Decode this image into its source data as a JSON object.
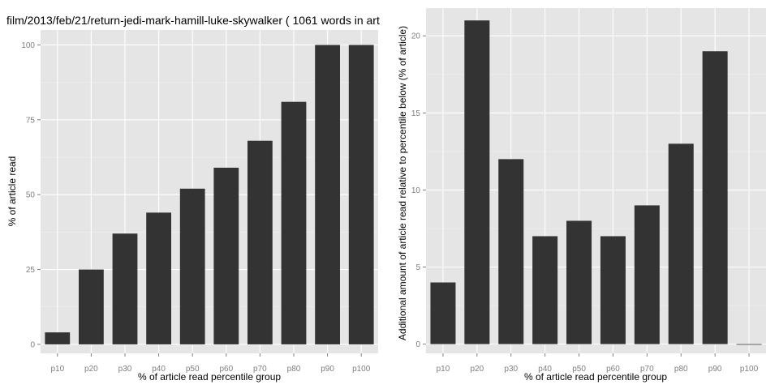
{
  "title": "film/2013/feb/21/return-jedi-mark-hamill-luke-skywalker ( 1061 words in art",
  "chart_data": [
    {
      "type": "bar",
      "title": "film/2013/feb/21/return-jedi-mark-hamill-luke-skywalker ( 1061 words in art",
      "xlabel": "% of article read percentile group",
      "ylabel": "% of article read",
      "categories": [
        "p10",
        "p20",
        "p30",
        "p40",
        "p50",
        "p60",
        "p70",
        "p80",
        "p90",
        "p100"
      ],
      "values": [
        4,
        25,
        37,
        44,
        52,
        59,
        68,
        81,
        100,
        100
      ],
      "ylim": [
        -3,
        105
      ],
      "yticks": [
        0,
        25,
        50,
        75,
        100
      ],
      "grid": true
    },
    {
      "type": "bar",
      "title": "",
      "xlabel": "% of article read percentile group",
      "ylabel": "Additional amount of article read relative to percentile below (% of article)",
      "categories": [
        "p10",
        "p20",
        "p30",
        "p40",
        "p50",
        "p60",
        "p70",
        "p80",
        "p90",
        "p100"
      ],
      "values": [
        4,
        21,
        12,
        7,
        8,
        7,
        9,
        13,
        19,
        0
      ],
      "ylim": [
        -0.6,
        21.8
      ],
      "yticks": [
        0,
        5,
        10,
        15,
        20
      ],
      "grid": true
    }
  ]
}
